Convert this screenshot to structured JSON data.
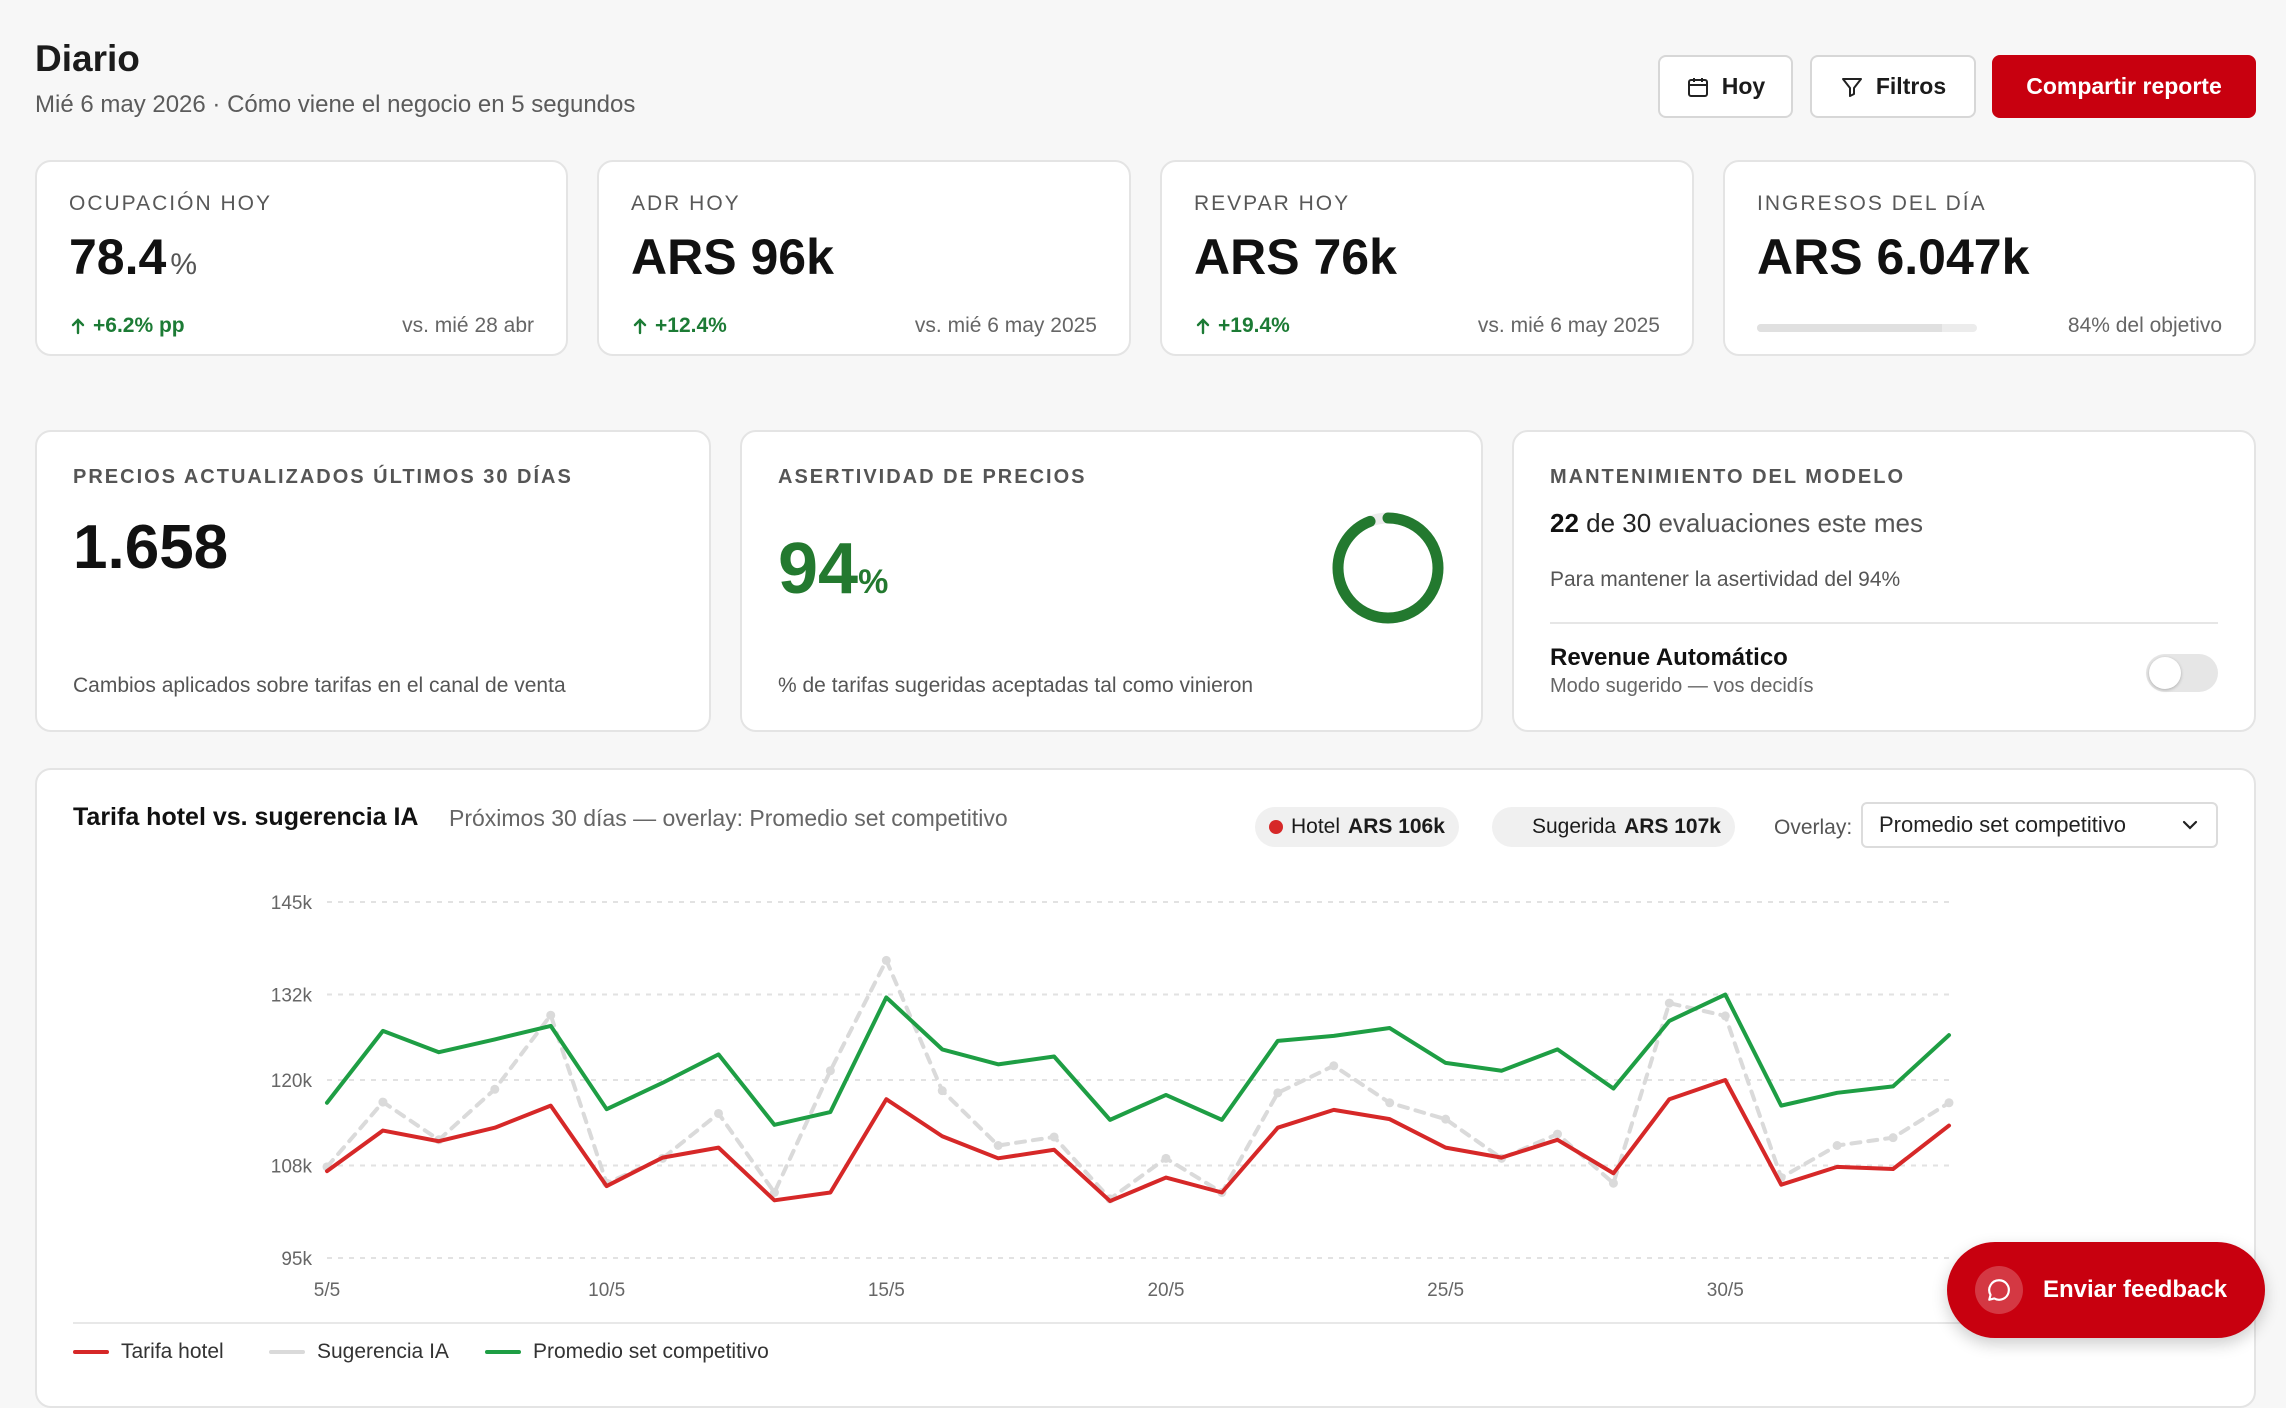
{
  "header": {
    "title": "Diario",
    "subtitle": "Mié 6 may 2026 · Cómo viene el negocio en 5 segundos",
    "today_label": "Hoy",
    "filters_label": "Filtros",
    "share_label": "Compartir reporte"
  },
  "kpis": [
    {
      "label": "Ocupación hoy",
      "value": "78.4",
      "unit": "%",
      "delta": "+6.2% pp",
      "compare": "vs. mié 28 abr"
    },
    {
      "label": "ADR hoy",
      "value": "ARS 96k",
      "delta": "+12.4%",
      "compare": "vs. mié 6 may 2025"
    },
    {
      "label": "RevPAR hoy",
      "value": "ARS 76k",
      "delta": "+19.4%",
      "compare": "vs. mié 6 may 2025"
    },
    {
      "label": "Ingresos del día",
      "value": "ARS 6.047k",
      "target_text": "84% del objetivo",
      "target_progress": 0.84
    }
  ],
  "prices": {
    "label": "Precios actualizados últimos 30 días",
    "value": "1.658",
    "foot": "Cambios aplicados sobre tarifas en el canal de venta"
  },
  "accuracy": {
    "label": "Asertividad de precios",
    "value": "94",
    "unit": "%",
    "ring_percent": 94,
    "foot": "% de tarifas sugeridas aceptadas tal como vinieron",
    "color": "#23792f"
  },
  "model": {
    "label": "Mantenimiento del modelo",
    "done": "22",
    "of_text": "de 30",
    "rest_text": "evaluaciones este mes",
    "note": "Para mantener la asertividad del 94%",
    "toggle_title": "Revenue Automático",
    "toggle_sub": "Modo sugerido — vos decidís",
    "toggle_on": false
  },
  "chart_card": {
    "title": "Tarifa hotel vs. sugerencia IA",
    "subtitle": "Próximos 30 días — overlay: Promedio set competitivo",
    "hotel_pill_label": "Hotel",
    "hotel_pill_value": "ARS 106k",
    "sug_pill_label": "Sugerida",
    "sug_pill_value": "ARS 107k",
    "overlay_label": "Overlay:",
    "overlay_value": "Promedio set competitivo"
  },
  "chart_data": {
    "type": "line",
    "x": [
      "5/5",
      "6/5",
      "7/5",
      "8/5",
      "9/5",
      "10/5",
      "11/5",
      "12/5",
      "13/5",
      "14/5",
      "15/5",
      "16/5",
      "17/5",
      "18/5",
      "19/5",
      "20/5",
      "21/5",
      "22/5",
      "23/5",
      "24/5",
      "25/5",
      "26/5",
      "27/5",
      "28/5",
      "29/5",
      "30/5",
      "31/5",
      "1/6",
      "2/6",
      "3/6"
    ],
    "x_tick_labels": [
      "5/5",
      "10/5",
      "15/5",
      "20/5",
      "25/5",
      "30/5"
    ],
    "y_tick_labels": [
      "145k",
      "132k",
      "120k",
      "108k",
      "95k"
    ],
    "ylim": [
      95,
      145
    ],
    "y_ticks": [
      95,
      108,
      120,
      132,
      145
    ],
    "series": [
      {
        "name": "Tarifa hotel",
        "color": "#d62828",
        "dashed": false,
        "values": [
          107.2,
          112.9,
          111.4,
          113.3,
          116.4,
          105.1,
          109.1,
          110.5,
          103.1,
          104.2,
          117.3,
          112.1,
          109.0,
          110.2,
          103.0,
          106.3,
          104.2,
          113.3,
          115.8,
          114.5,
          110.5,
          109.1,
          111.6,
          106.9,
          117.3,
          120.0,
          105.3,
          107.8,
          107.5,
          113.6
        ]
      },
      {
        "name": "Sugerencia IA",
        "color": "#dadada",
        "dashed": true,
        "values": [
          107.8,
          116.9,
          111.6,
          118.7,
          129.1,
          105.5,
          109.0,
          115.3,
          104.2,
          121.3,
          136.8,
          118.5,
          110.8,
          112.0,
          103.3,
          109.0,
          104.2,
          118.2,
          122.0,
          116.8,
          114.5,
          109.0,
          112.4,
          105.5,
          130.8,
          129.0,
          106.3,
          110.8,
          111.9,
          116.8
        ]
      },
      {
        "name": "Promedio set competitivo",
        "color": "#1e9e44",
        "dashed": false,
        "values": [
          116.8,
          126.9,
          123.9,
          125.7,
          127.6,
          115.9,
          119.6,
          123.6,
          113.7,
          115.5,
          131.6,
          124.3,
          122.2,
          123.3,
          114.4,
          117.9,
          114.4,
          125.5,
          126.2,
          127.3,
          122.4,
          121.3,
          124.3,
          118.8,
          128.3,
          132.0,
          116.4,
          118.2,
          119.1,
          126.3
        ]
      }
    ],
    "grid": true,
    "legend": "bottom-left"
  },
  "feedback_label": "Enviar feedback"
}
